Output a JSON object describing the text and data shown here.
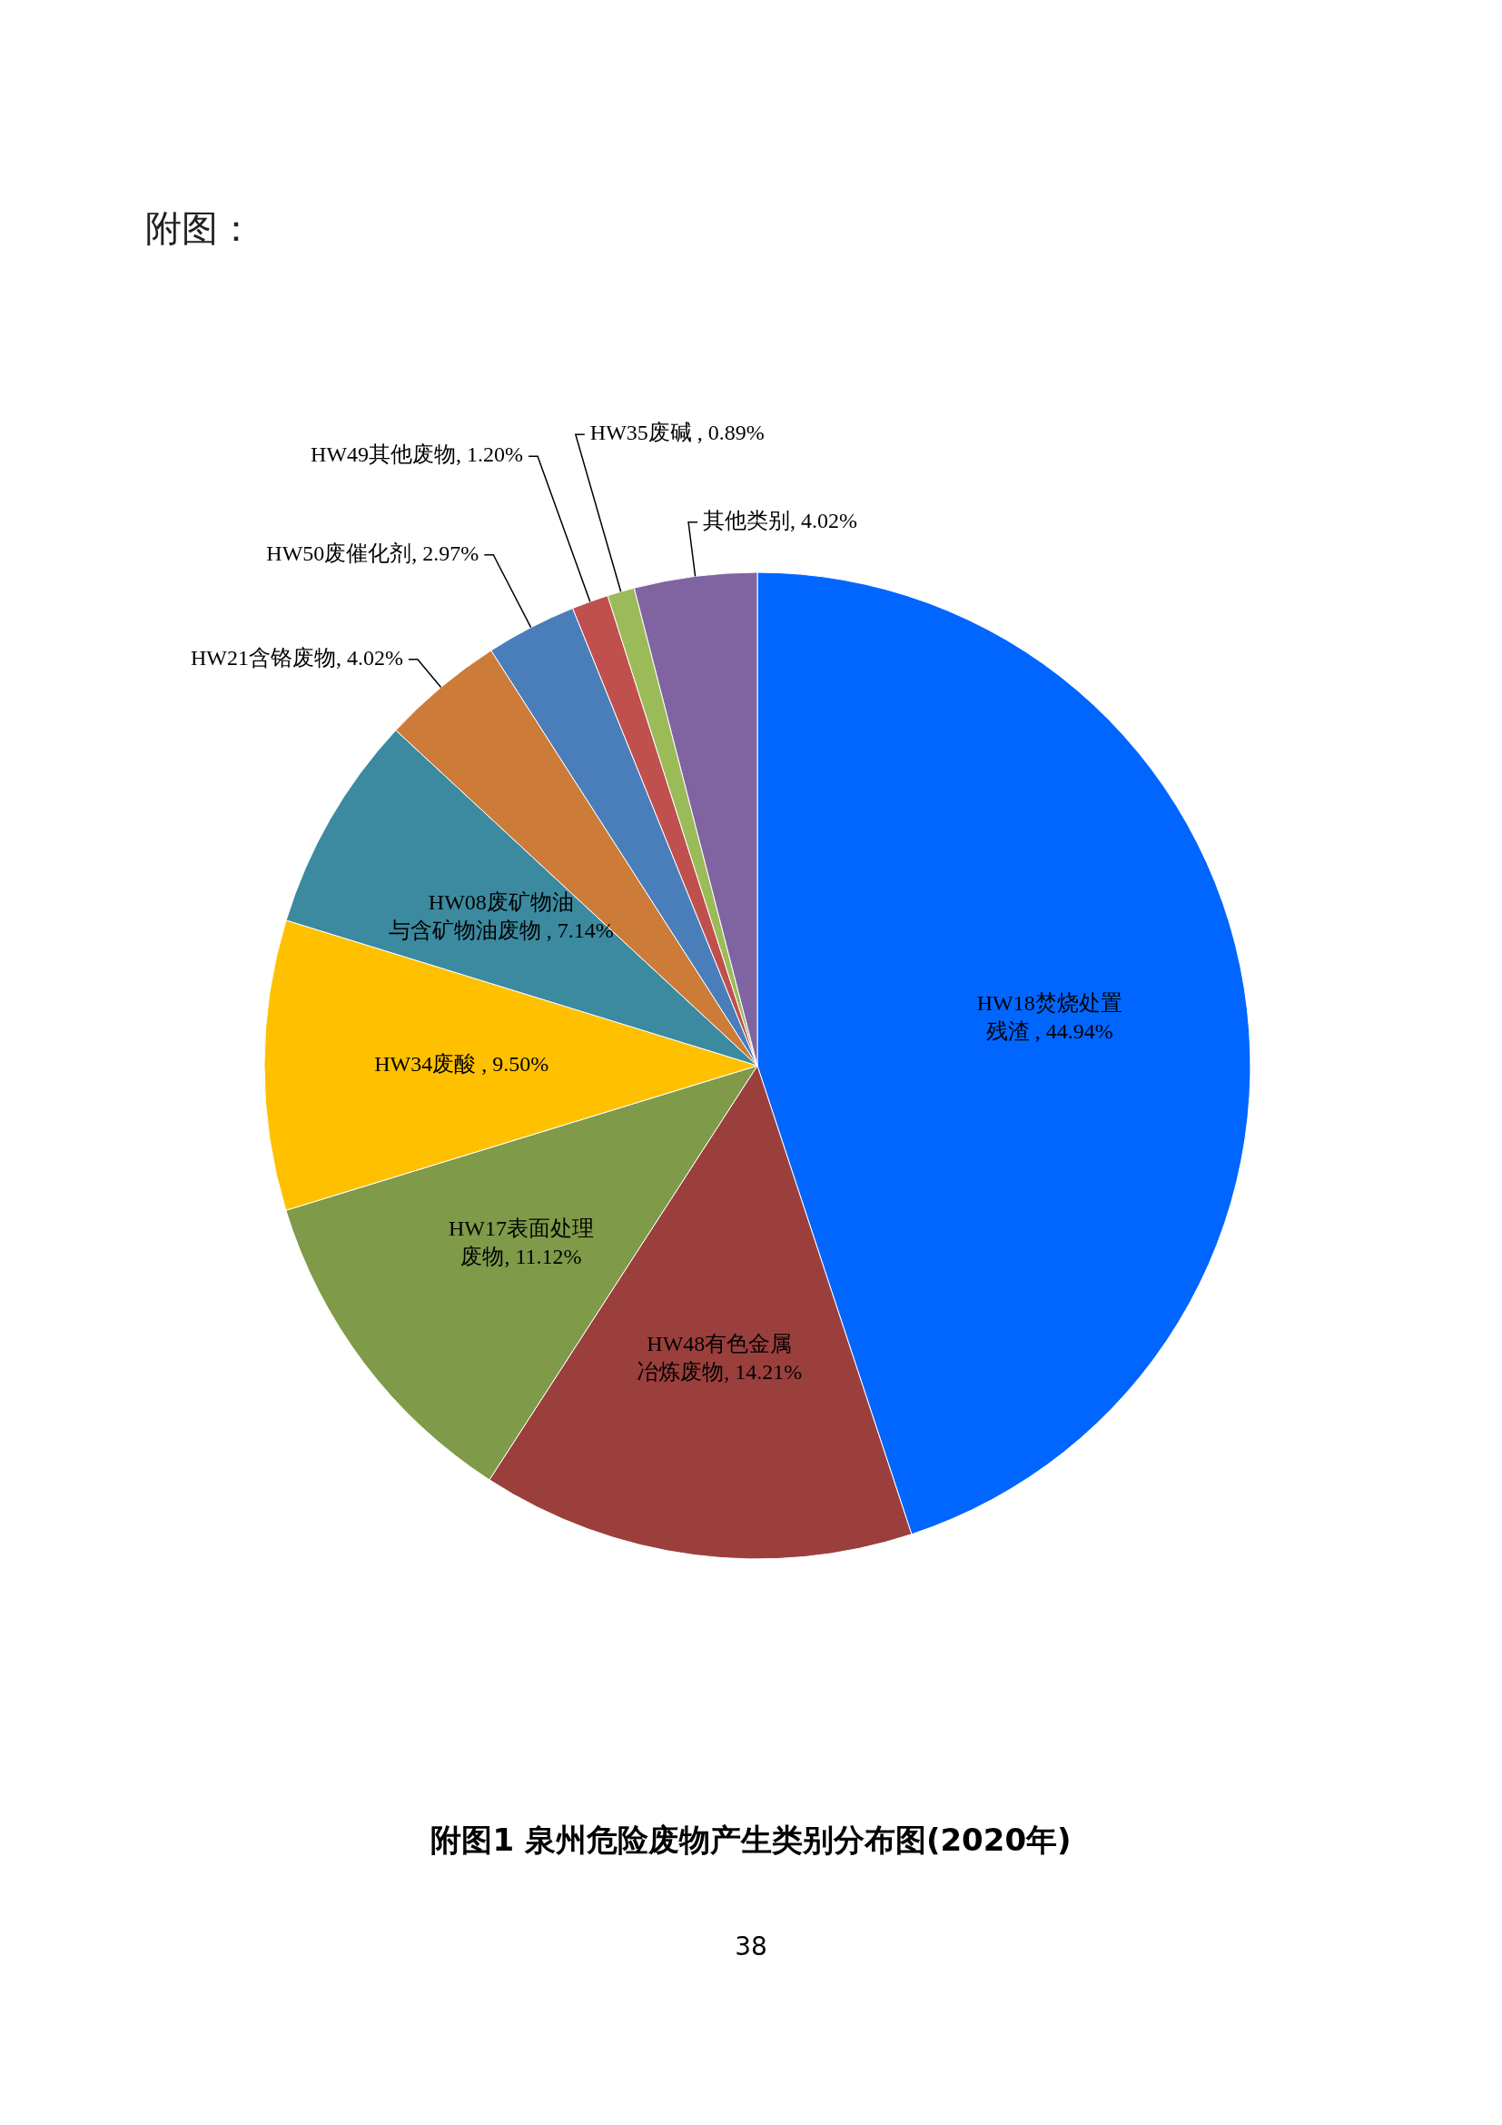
{
  "chart_data": {
    "type": "pie",
    "title": "附图1 泉州危险废物产生类别分布图(2020年)",
    "annotations": [
      "附图：",
      "38"
    ],
    "categories": [
      "HW18焚烧处置残渣",
      "HW48有色金属冶炼废物",
      "HW17表面处理废物",
      "HW34废酸",
      "HW08废矿物油与含矿物油废物",
      "HW21含铬废物",
      "HW50废催化剂",
      "HW49其他废物",
      "HW35废碱",
      "其他类别"
    ],
    "values": [
      44.94,
      14.21,
      11.12,
      9.5,
      7.14,
      4.02,
      2.97,
      1.2,
      0.89,
      4.02
    ],
    "colors": [
      "#0066ff",
      "#9b3f3d",
      "#7f9a48",
      "#ffc000",
      "#3b8aa0",
      "#cc7b38",
      "#4a7ebb",
      "#c0504d",
      "#9bbb59",
      "#8064a2"
    ],
    "value_labels": [
      " , 44.94%",
      ", 14.21%",
      ", 11.12%",
      " , 9.50%",
      " , 7.14%",
      ", 4.02%",
      ", 2.97%",
      ", 1.20%",
      " , 0.89%",
      ", 4.02%"
    ]
  }
}
